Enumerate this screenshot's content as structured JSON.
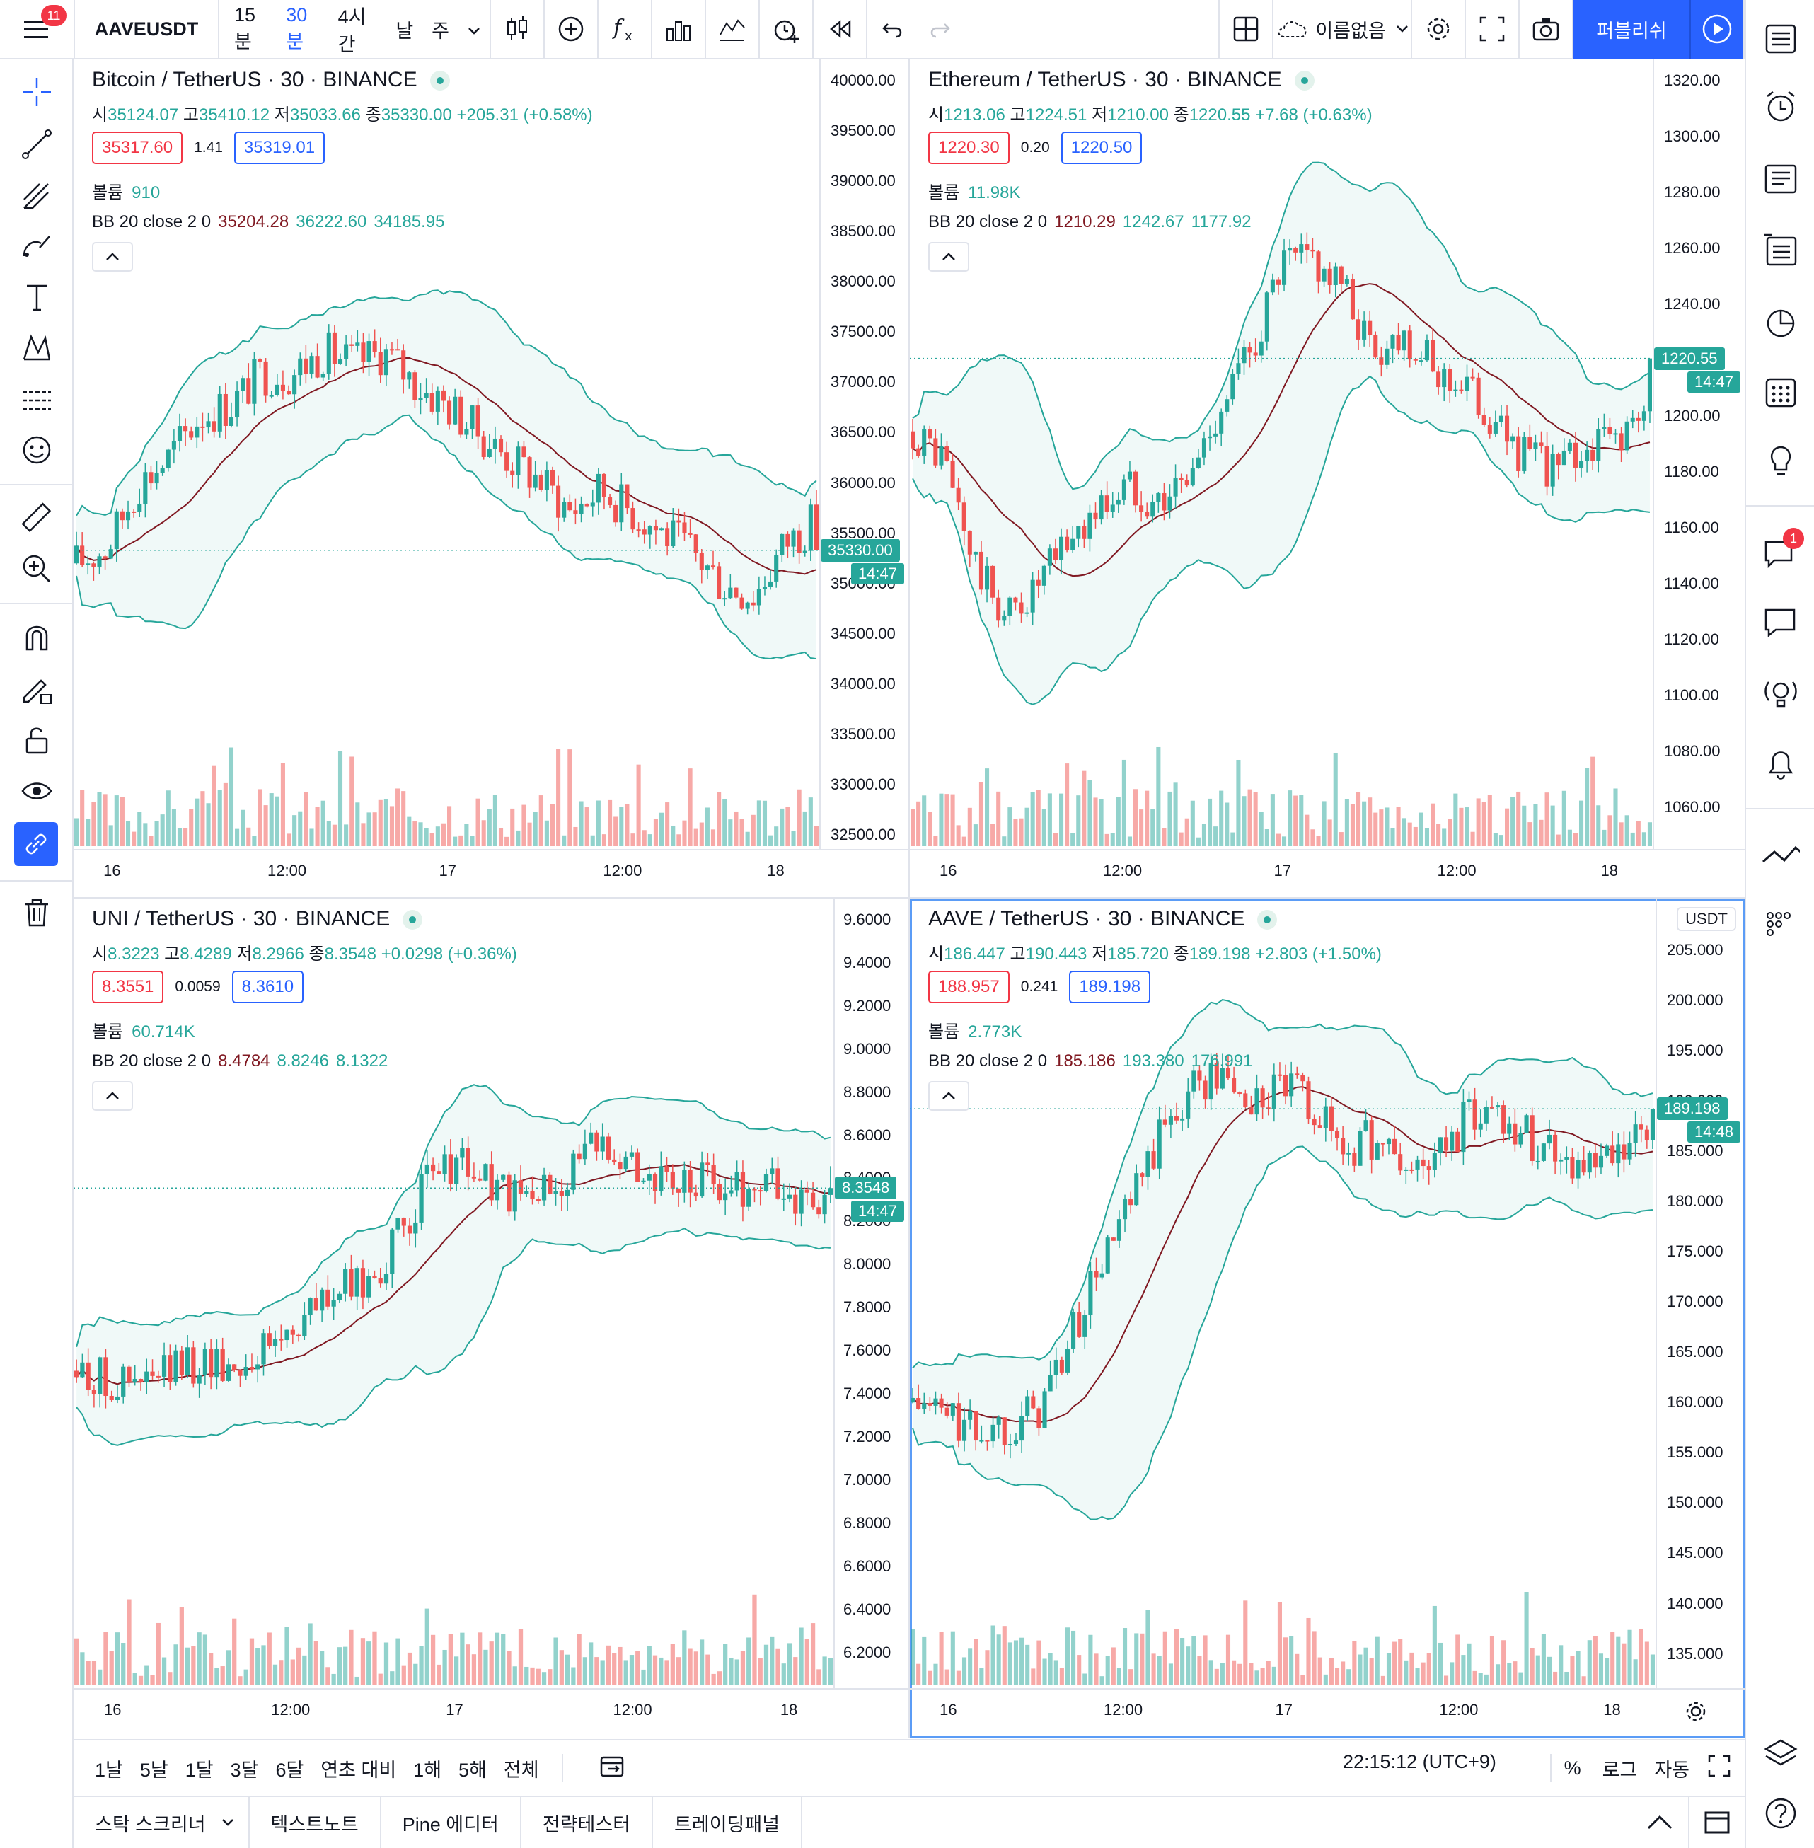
{
  "topbar": {
    "menu_badge": "11",
    "symbol": "AAVEUSDT",
    "intervals": [
      "15분",
      "30분",
      "4시간",
      "날",
      "주"
    ],
    "active_interval": "30분",
    "layout_name": "이름없음",
    "publish_label": "퍼블리쉬"
  },
  "right_toolbar": {
    "chat_badge": "1"
  },
  "panes": [
    {
      "title": "Bitcoin / TetherUS · 30 · BINANCE",
      "ohlc": {
        "o": "35124.07",
        "h": "35410.12",
        "l": "35033.66",
        "c": "35330.00",
        "chg": "+205.31 (+0.58%)"
      },
      "bid": "35317.60",
      "spread": "1.41",
      "ask": "35319.01",
      "volume_label": "볼륨",
      "volume": "910",
      "bb_label": "BB 20 close 2 0",
      "bb_mid": "35204.28",
      "bb_up": "36222.60",
      "bb_low": "34185.95",
      "yaxis": [
        "40000.00",
        "39500.00",
        "39000.00",
        "38500.00",
        "38000.00",
        "37500.00",
        "37000.00",
        "36500.00",
        "36000.00",
        "35500.00",
        "35000.00",
        "34500.00",
        "34000.00",
        "33500.00",
        "33000.00",
        "32500.00"
      ],
      "ymin": 32500,
      "ymax": 40000,
      "last": "35330.00",
      "last_value": 35330,
      "countdown": "14:47",
      "xaxis": [
        "16",
        "12:00",
        "17",
        "12:00",
        "18"
      ]
    },
    {
      "title": "Ethereum / TetherUS · 30 · BINANCE",
      "ohlc": {
        "o": "1213.06",
        "h": "1224.51",
        "l": "1210.00",
        "c": "1220.55",
        "chg": "+7.68 (+0.63%)"
      },
      "bid": "1220.30",
      "spread": "0.20",
      "ask": "1220.50",
      "volume_label": "볼륨",
      "volume": "11.98K",
      "bb_label": "BB 20 close 2 0",
      "bb_mid": "1210.29",
      "bb_up": "1242.67",
      "bb_low": "1177.92",
      "yaxis": [
        "1320.00",
        "1300.00",
        "1280.00",
        "1260.00",
        "1240.00",
        "1220.00",
        "1200.00",
        "1180.00",
        "1160.00",
        "1140.00",
        "1120.00",
        "1100.00",
        "1080.00",
        "1060.00"
      ],
      "ymin": 1050,
      "ymax": 1320,
      "last": "1220.55",
      "last_value": 1220.55,
      "countdown": "14:47",
      "xaxis": [
        "16",
        "12:00",
        "17",
        "12:00",
        "18"
      ]
    },
    {
      "title": "UNI / TetherUS · 30 · BINANCE",
      "ohlc": {
        "o": "8.3223",
        "h": "8.4289",
        "l": "8.2966",
        "c": "8.3548",
        "chg": "+0.0298 (+0.36%)"
      },
      "bid": "8.3551",
      "spread": "0.0059",
      "ask": "8.3610",
      "volume_label": "볼륨",
      "volume": "60.714K",
      "bb_label": "BB 20 close 2 0",
      "bb_mid": "8.4784",
      "bb_up": "8.8246",
      "bb_low": "8.1322",
      "yaxis": [
        "9.6000",
        "9.4000",
        "9.2000",
        "9.0000",
        "8.8000",
        "8.6000",
        "8.4000",
        "8.2000",
        "8.0000",
        "7.8000",
        "7.6000",
        "7.4000",
        "7.2000",
        "7.0000",
        "6.8000",
        "6.6000",
        "6.4000",
        "6.2000"
      ],
      "ymin": 6.1,
      "ymax": 9.6,
      "last": "8.3548",
      "last_value": 8.3548,
      "countdown": "14:47",
      "xaxis": [
        "16",
        "12:00",
        "17",
        "12:00",
        "18"
      ]
    },
    {
      "title": "AAVE / TetherUS · 30 · BINANCE",
      "ohlc": {
        "o": "186.447",
        "h": "190.443",
        "l": "185.720",
        "c": "189.198",
        "chg": "+2.803 (+1.50%)"
      },
      "bid": "188.957",
      "spread": "0.241",
      "ask": "189.198",
      "volume_label": "볼륨",
      "volume": "2.773K",
      "bb_label": "BB 20 close 2 0",
      "bb_mid": "185.186",
      "bb_up": "193.380",
      "bb_low": "176.991",
      "yaxis": [
        "205.000",
        "200.000",
        "195.000",
        "190.000",
        "185.000",
        "180.000",
        "175.000",
        "170.000",
        "165.000",
        "160.000",
        "155.000",
        "150.000",
        "145.000",
        "140.000",
        "135.000"
      ],
      "ymin": 133,
      "ymax": 208,
      "last": "189.198",
      "last_value": 189.198,
      "countdown": "14:48",
      "currency": "USDT",
      "xaxis": [
        "16",
        "12:00",
        "17",
        "12:00",
        "18"
      ]
    }
  ],
  "rangebar": {
    "ranges": [
      "1날",
      "5날",
      "1달",
      "3달",
      "6달",
      "연초 대비",
      "1해",
      "5해",
      "전체"
    ],
    "clock": "22:15:12 (UTC+9)",
    "percent": "%",
    "log": "로그",
    "auto": "자동"
  },
  "panelbar": {
    "tabs": [
      "스탁 스크리너",
      "텍스트노트",
      "Pine 에디터",
      "전략테스터",
      "트레이딩패널"
    ]
  },
  "colors": {
    "up": "#26a69a",
    "down": "#ef5350",
    "bb": "#26a69a",
    "mid": "#801922",
    "accent": "#2962ff"
  }
}
